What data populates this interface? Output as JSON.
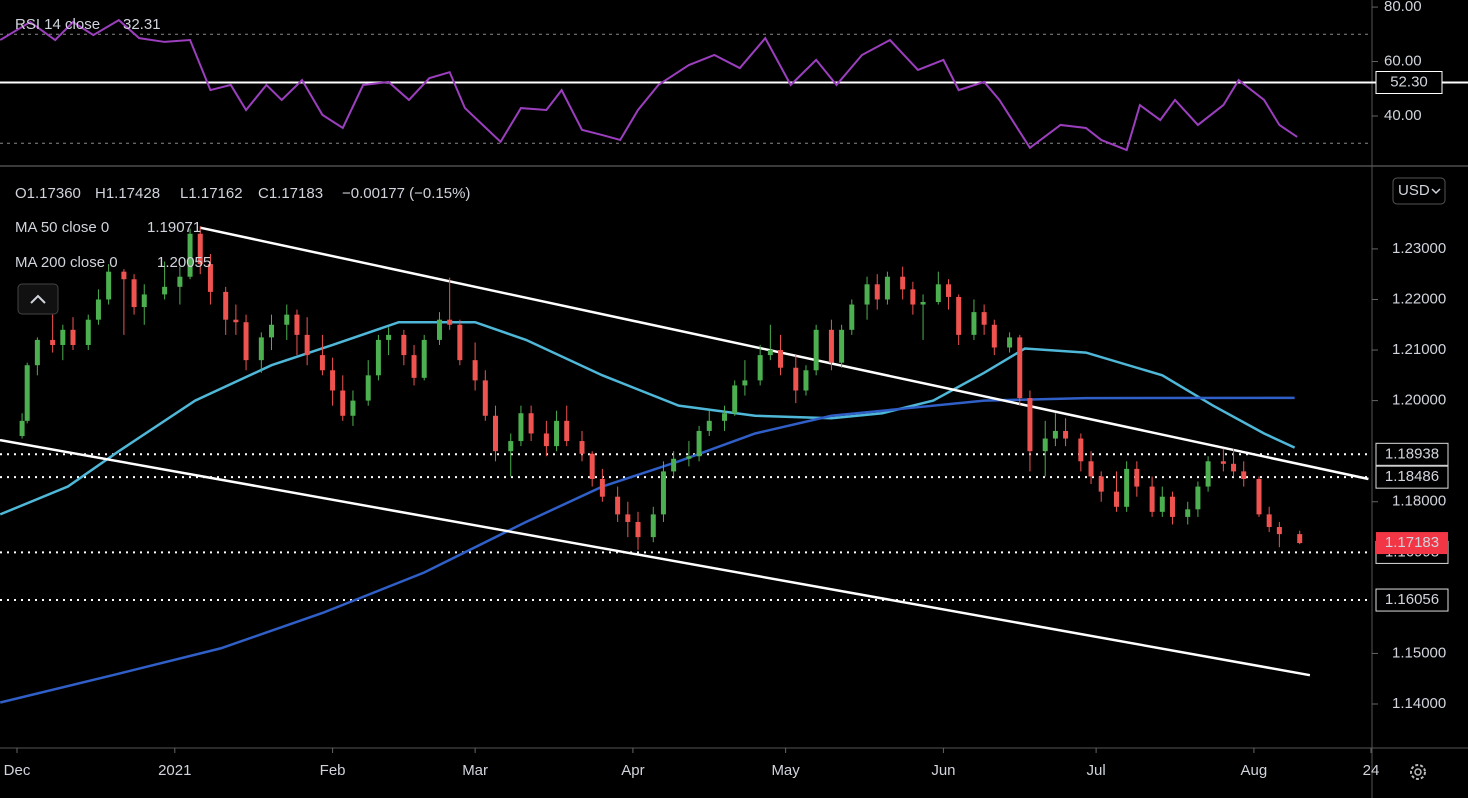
{
  "chart_data": [
    {
      "type": "line",
      "series": [
        {
          "name": "RSI 14 close",
          "color": "#9c3fbf",
          "last_value": 32.31,
          "x": [
            -3.3,
            2.6,
            7.5,
            11,
            15,
            20,
            24,
            29,
            34,
            38,
            42,
            45,
            49,
            52,
            56,
            60,
            64,
            68,
            73,
            77,
            81,
            85,
            88,
            95,
            99,
            104,
            107,
            111,
            115,
            118.5,
            122,
            126,
            132,
            137,
            142,
            147,
            152,
            157,
            161,
            166,
            171.5,
            177,
            182,
            185,
            190,
            193,
            199,
            205,
            210,
            213,
            218,
            220.6,
            224.6,
            227.5,
            232,
            237,
            240,
            245,
            248,
            251.5
          ],
          "values": [
            67.9,
            74.5,
            67.9,
            74.5,
            69.7,
            75.2,
            68.6,
            67.2,
            67.9,
            49.5,
            51.4,
            42.2,
            51.4,
            45.9,
            53.2,
            40.4,
            35.6,
            51.4,
            52.5,
            45.9,
            53.9,
            56.1,
            42.9,
            30.5,
            42.9,
            42.2,
            49.5,
            34.9,
            33.0,
            31.2,
            42.2,
            51.4,
            58.7,
            62.4,
            57.6,
            68.6,
            51.4,
            60.6,
            51.4,
            62.4,
            67.9,
            56.9,
            60.6,
            49.5,
            52.5,
            45.9,
            28.3,
            36.7,
            35.6,
            31.2,
            27.5,
            44.0,
            38.5,
            45.9,
            36.7,
            44.0,
            53.2,
            45.9,
            36.7,
            32.31
          ]
        }
      ],
      "ylim": [
        22.0,
        82.6
      ],
      "yticks": [
        {
          "value": 40,
          "label": "40.00"
        },
        {
          "value": 60,
          "label": "60.00"
        },
        {
          "value": 80,
          "label": "80.00"
        }
      ],
      "dotted_levels": [
        70,
        30
      ],
      "level": {
        "value": 52.3,
        "label": "52.30"
      }
    },
    {
      "type": "candlestick",
      "header": [
        "O1.17360",
        "H1.17428",
        "L1.17162",
        "C1.17183",
        "−0.00177 (−0.15%)"
      ],
      "currency": "USD",
      "xlim": [
        -3.34,
        266.2
      ],
      "xticks": [
        {
          "value": 0,
          "label": "Dec"
        },
        {
          "value": 31,
          "label": "2021"
        },
        {
          "value": 62,
          "label": "Feb"
        },
        {
          "value": 90,
          "label": "Mar"
        },
        {
          "value": 121,
          "label": "Apr"
        },
        {
          "value": 151,
          "label": "May"
        },
        {
          "value": 182,
          "label": "Jun"
        },
        {
          "value": 212,
          "label": "Jul"
        },
        {
          "value": 243,
          "label": "Aug"
        },
        {
          "value": 266,
          "label": "24"
        }
      ],
      "ylim": [
        1.1313,
        1.246
      ],
      "yticks": [
        {
          "value": 1.14,
          "label": "1.14000"
        },
        {
          "value": 1.15,
          "label": "1.15000"
        },
        {
          "value": 1.18,
          "label": "1.18000"
        },
        {
          "value": 1.2,
          "label": "1.20000"
        },
        {
          "value": 1.21,
          "label": "1.21000"
        },
        {
          "value": 1.22,
          "label": "1.22000"
        },
        {
          "value": 1.23,
          "label": "1.23000"
        }
      ],
      "up_color": "#4caf50",
      "down_color": "#ef5350",
      "candles": {
        "x": [
          1,
          2,
          4,
          7,
          9,
          11,
          14,
          16,
          18,
          21,
          23,
          25,
          29,
          32,
          34,
          36,
          38,
          41,
          43,
          45,
          48,
          50,
          53,
          55,
          57,
          60,
          62,
          64,
          66,
          69,
          71,
          73,
          76,
          78,
          80,
          83,
          85,
          87,
          90,
          92,
          94,
          97,
          99,
          101,
          104,
          106,
          108,
          111,
          113,
          115,
          118,
          120,
          122,
          125,
          127,
          129,
          132,
          134,
          136,
          139,
          141,
          143,
          146,
          148,
          150,
          153,
          155,
          157,
          160,
          162,
          164,
          167,
          169,
          171,
          174,
          176,
          178,
          181,
          183,
          185,
          188,
          190,
          192,
          195,
          197,
          199,
          202,
          204,
          206,
          209,
          211,
          213,
          216,
          218,
          220,
          223,
          225,
          227,
          230,
          232,
          234,
          237,
          239,
          241,
          244,
          246,
          248,
          252
        ],
        "open": [
          1.193,
          1.196,
          1.207,
          1.212,
          1.211,
          1.214,
          1.211,
          1.216,
          1.22,
          1.2255,
          1.224,
          1.2185,
          1.221,
          1.2225,
          1.2245,
          1.233,
          1.227,
          1.2215,
          1.216,
          1.2155,
          1.208,
          1.2125,
          1.215,
          1.217,
          1.213,
          1.209,
          1.206,
          1.202,
          1.197,
          1.2,
          1.205,
          1.212,
          1.213,
          1.209,
          1.2045,
          1.212,
          1.216,
          1.215,
          1.208,
          1.204,
          1.197,
          1.19,
          1.192,
          1.1975,
          1.1935,
          1.191,
          1.196,
          1.192,
          1.1895,
          1.1845,
          1.181,
          1.1775,
          1.176,
          1.173,
          1.1775,
          1.186,
          1.1885,
          1.189,
          1.194,
          1.196,
          1.1975,
          1.203,
          1.204,
          1.209,
          1.21,
          1.2065,
          1.202,
          1.206,
          1.214,
          1.2075,
          1.214,
          1.219,
          1.223,
          1.22,
          1.2245,
          1.222,
          1.219,
          1.2195,
          1.223,
          1.2205,
          1.213,
          1.2175,
          1.215,
          1.2105,
          1.2125,
          1.2005,
          1.19,
          1.1925,
          1.194,
          1.1925,
          1.188,
          1.185,
          1.182,
          1.179,
          1.1865,
          1.183,
          1.178,
          1.181,
          1.177,
          1.1785,
          1.183,
          1.188,
          1.1875,
          1.186,
          1.1845,
          1.1775,
          1.175,
          1.1736
        ],
        "high": [
          1.1975,
          1.2075,
          1.2125,
          1.217,
          1.215,
          1.2165,
          1.217,
          1.222,
          1.227,
          1.226,
          1.225,
          1.223,
          1.2275,
          1.2265,
          1.234,
          1.2345,
          1.229,
          1.2225,
          1.219,
          1.217,
          1.2135,
          1.217,
          1.219,
          1.218,
          1.2165,
          1.213,
          1.2085,
          1.205,
          1.202,
          1.208,
          1.213,
          1.2145,
          1.214,
          1.211,
          1.213,
          1.2175,
          1.2243,
          1.216,
          1.2115,
          1.206,
          1.199,
          1.1935,
          1.199,
          1.199,
          1.196,
          1.198,
          1.199,
          1.194,
          1.19,
          1.1865,
          1.183,
          1.18,
          1.178,
          1.179,
          1.188,
          1.19,
          1.192,
          1.195,
          1.198,
          1.199,
          1.204,
          1.208,
          1.211,
          1.215,
          1.213,
          1.209,
          1.207,
          1.215,
          1.216,
          1.215,
          1.22,
          1.2245,
          1.225,
          1.2255,
          1.2265,
          1.2235,
          1.221,
          1.2255,
          1.224,
          1.221,
          1.22,
          1.219,
          1.216,
          1.2135,
          1.213,
          1.202,
          1.196,
          1.1975,
          1.1965,
          1.1935,
          1.19,
          1.186,
          1.186,
          1.188,
          1.188,
          1.185,
          1.183,
          1.182,
          1.18,
          1.184,
          1.189,
          1.1905,
          1.1905,
          1.188,
          1.185,
          1.179,
          1.176,
          1.17428
        ],
        "low": [
          1.1925,
          1.1955,
          1.205,
          1.2095,
          1.208,
          1.21,
          1.21,
          1.215,
          1.219,
          1.213,
          1.217,
          1.215,
          1.22,
          1.219,
          1.224,
          1.225,
          1.219,
          1.213,
          1.213,
          1.206,
          1.2055,
          1.21,
          1.212,
          1.209,
          1.207,
          1.205,
          1.199,
          1.196,
          1.195,
          1.199,
          1.204,
          1.209,
          1.207,
          1.203,
          1.204,
          1.211,
          1.214,
          1.207,
          1.202,
          1.196,
          1.188,
          1.185,
          1.191,
          1.192,
          1.189,
          1.19,
          1.191,
          1.188,
          1.183,
          1.18,
          1.176,
          1.173,
          1.1705,
          1.172,
          1.176,
          1.185,
          1.187,
          1.188,
          1.193,
          1.194,
          1.197,
          1.201,
          1.203,
          1.208,
          1.205,
          1.1995,
          1.201,
          1.205,
          1.206,
          1.2065,
          1.213,
          1.216,
          1.218,
          1.219,
          1.22,
          1.217,
          1.212,
          1.219,
          1.218,
          1.211,
          1.212,
          1.213,
          1.209,
          1.2095,
          1.199,
          1.186,
          1.185,
          1.191,
          1.191,
          1.186,
          1.1835,
          1.18,
          1.178,
          1.178,
          1.181,
          1.177,
          1.177,
          1.1755,
          1.1755,
          1.177,
          1.182,
          1.186,
          1.185,
          1.183,
          1.177,
          1.174,
          1.171,
          1.17162
        ],
        "close": [
          1.196,
          1.207,
          1.212,
          1.211,
          1.214,
          1.211,
          1.216,
          1.22,
          1.2255,
          1.224,
          1.2185,
          1.221,
          1.2225,
          1.2245,
          1.233,
          1.227,
          1.2215,
          1.216,
          1.2155,
          1.208,
          1.2125,
          1.215,
          1.217,
          1.213,
          1.209,
          1.206,
          1.202,
          1.197,
          1.2,
          1.205,
          1.212,
          1.213,
          1.209,
          1.2045,
          1.212,
          1.216,
          1.215,
          1.208,
          1.204,
          1.197,
          1.19,
          1.192,
          1.1975,
          1.1935,
          1.191,
          1.196,
          1.192,
          1.1895,
          1.1845,
          1.181,
          1.1775,
          1.176,
          1.173,
          1.1775,
          1.186,
          1.1885,
          1.189,
          1.194,
          1.196,
          1.1975,
          1.203,
          1.204,
          1.209,
          1.21,
          1.2065,
          1.202,
          1.206,
          1.214,
          1.2075,
          1.214,
          1.219,
          1.223,
          1.22,
          1.2245,
          1.222,
          1.219,
          1.2195,
          1.223,
          1.2205,
          1.213,
          1.2175,
          1.215,
          1.2105,
          1.2125,
          1.2005,
          1.19,
          1.1925,
          1.194,
          1.1925,
          1.188,
          1.185,
          1.182,
          1.179,
          1.1865,
          1.183,
          1.178,
          1.181,
          1.177,
          1.1785,
          1.183,
          1.188,
          1.1875,
          1.186,
          1.1845,
          1.1775,
          1.175,
          1.1736,
          1.17183
        ]
      },
      "lines": [
        {
          "name": "MA 50 close 0",
          "color": "#4fb8d8",
          "last_value": 1.19071,
          "x": [
            -3.3,
            10,
            20,
            35,
            50,
            62,
            75,
            90,
            100,
            115,
            130,
            145,
            160,
            170,
            180,
            190,
            198,
            210,
            225,
            235,
            245,
            251
          ],
          "values": [
            1.1775,
            1.183,
            1.19,
            1.2,
            1.207,
            1.211,
            1.2155,
            1.2155,
            1.212,
            1.205,
            1.199,
            1.197,
            1.1965,
            1.1975,
            1.2,
            1.2055,
            1.2103,
            1.2095,
            1.205,
            1.199,
            1.1935,
            1.19071
          ]
        },
        {
          "name": "MA 200 close 0",
          "color": "#2f5fc7",
          "last_value": 1.20055,
          "x": [
            -3.3,
            20,
            40,
            60,
            80,
            100,
            115,
            130,
            145,
            160,
            175,
            190,
            210,
            251
          ],
          "values": [
            1.1403,
            1.146,
            1.151,
            1.158,
            1.166,
            1.176,
            1.183,
            1.188,
            1.1935,
            1.197,
            1.1985,
            1.2,
            1.2005,
            1.20055
          ]
        }
      ],
      "trendlines": [
        {
          "color": "#ffffff",
          "x": [
            36,
            265.5
          ],
          "values": [
            1.2342,
            1.1845
          ]
        },
        {
          "color": "#ffffff",
          "x": [
            -3.34,
            254
          ],
          "values": [
            1.1922,
            1.1457
          ]
        }
      ],
      "levels": [
        1.18938,
        1.18486,
        1.16998,
        1.16056
      ],
      "last_price": {
        "value": 1.17183,
        "color": "#f23645"
      }
    }
  ]
}
